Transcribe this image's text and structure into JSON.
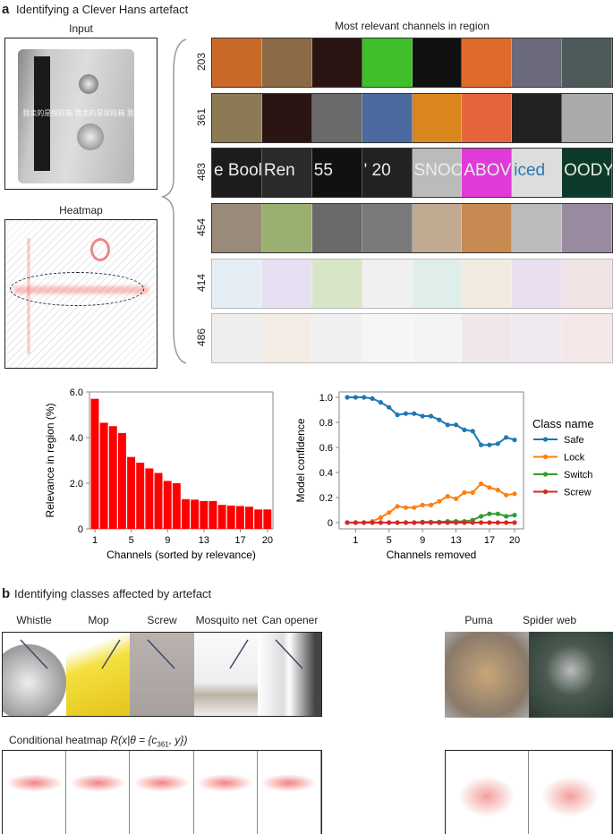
{
  "panel_a": {
    "label": "a",
    "title": "Identifying a Clever Hans artefact",
    "input_label": "Input",
    "heatmap_label": "Heatmap",
    "watermark_text": "我卖的是保险箱 我卖的是保险箱 我卖",
    "channels_title": "Most relevant channels in region",
    "channel_rows": [
      "203",
      "361",
      "483",
      "454",
      "414",
      "486"
    ],
    "tile_text_483": [
      "e Bool",
      "Ren",
      "55",
      "' 20",
      "SNOO",
      "ABOVE",
      "iced",
      "OODY"
    ]
  },
  "chart_data": [
    {
      "type": "bar",
      "xlabel": "Channels (sorted by relevance)",
      "ylabel": "Relevance in region (%)",
      "categories": [
        1,
        2,
        3,
        4,
        5,
        6,
        7,
        8,
        9,
        10,
        11,
        12,
        13,
        14,
        15,
        16,
        17,
        18,
        19,
        20
      ],
      "x_tick_labels": [
        "1",
        "5",
        "9",
        "13",
        "17",
        "20"
      ],
      "y_tick_labels": [
        "0",
        "2.0",
        "4.0",
        "6.0"
      ],
      "values": [
        5.7,
        4.65,
        4.5,
        4.2,
        3.15,
        2.9,
        2.65,
        2.45,
        2.1,
        2.0,
        1.3,
        1.28,
        1.22,
        1.22,
        1.05,
        1.02,
        1.0,
        0.97,
        0.85,
        0.85
      ],
      "ylim": [
        0,
        6.0
      ],
      "color": "#ff0000"
    },
    {
      "type": "line",
      "xlabel": "Channels removed",
      "ylabel": "Model confidence",
      "x": [
        0,
        1,
        2,
        3,
        4,
        5,
        6,
        7,
        8,
        9,
        10,
        11,
        12,
        13,
        14,
        15,
        16,
        17,
        18,
        19,
        20
      ],
      "x_tick_labels": [
        "1",
        "5",
        "9",
        "13",
        "17",
        "20"
      ],
      "y_tick_labels": [
        "0",
        "0.2",
        "0.4",
        "0.6",
        "0.8",
        "1.0"
      ],
      "ylim": [
        0,
        1.0
      ],
      "legend_title": "Class name",
      "legend_position": "right",
      "series": [
        {
          "name": "Safe",
          "color": "#1f77b4",
          "values": [
            1.0,
            1.0,
            1.0,
            0.99,
            0.96,
            0.92,
            0.86,
            0.87,
            0.87,
            0.85,
            0.85,
            0.82,
            0.78,
            0.78,
            0.74,
            0.73,
            0.62,
            0.62,
            0.63,
            0.68,
            0.66
          ]
        },
        {
          "name": "Lock",
          "color": "#ff7f0e",
          "values": [
            0,
            0,
            0,
            0.01,
            0.04,
            0.08,
            0.13,
            0.12,
            0.12,
            0.14,
            0.14,
            0.17,
            0.21,
            0.19,
            0.24,
            0.24,
            0.31,
            0.28,
            0.26,
            0.22,
            0.23
          ]
        },
        {
          "name": "Switch",
          "color": "#2ca02c",
          "values": [
            0,
            0,
            0,
            0,
            0,
            0,
            0,
            0,
            0,
            0.005,
            0.005,
            0.005,
            0.01,
            0.01,
            0.01,
            0.02,
            0.05,
            0.07,
            0.07,
            0.05,
            0.06
          ]
        },
        {
          "name": "Screw",
          "color": "#d62728",
          "values": [
            0,
            0,
            0,
            0,
            0,
            0,
            0,
            0,
            0,
            0,
            0,
            0,
            0,
            0,
            0,
            0,
            0,
            0,
            0,
            0,
            0
          ]
        }
      ]
    }
  ],
  "panel_b": {
    "label": "b",
    "title": "Identifying classes affected by artefact",
    "affected_classes": [
      "Whistle",
      "Mop",
      "Screw",
      "Mosquito net",
      "Can opener"
    ],
    "other_classes": [
      "Puma",
      "Spider web"
    ],
    "heatmap_caption_prefix": "Conditional heatmap ",
    "heatmap_caption_formula": "R(x|θ = {c",
    "heatmap_caption_sub": "361",
    "heatmap_caption_suffix": ", y})"
  }
}
